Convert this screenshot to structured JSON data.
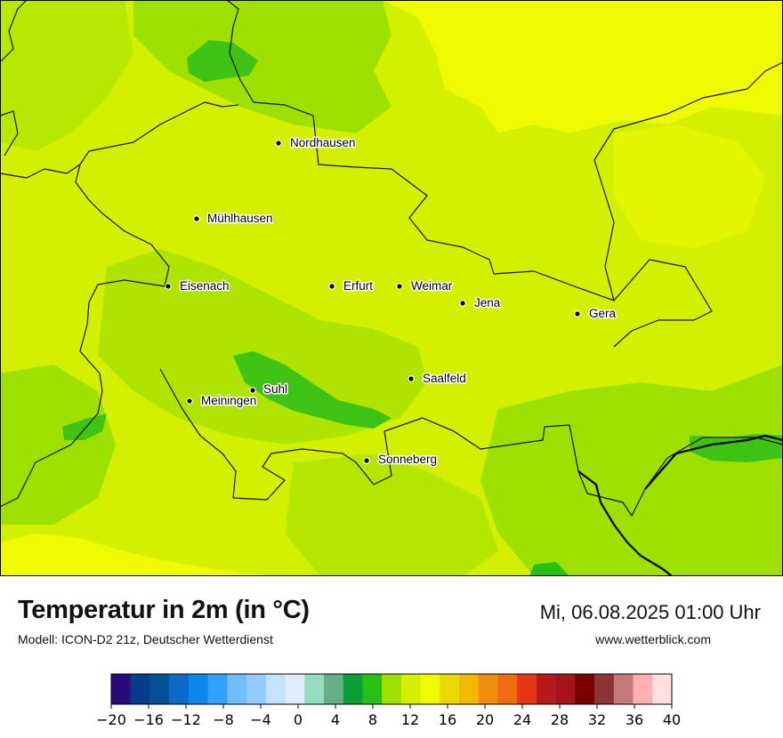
{
  "header": {
    "title": "Temperatur in 2m (in °C)",
    "subtitle": "Modell: ICON-D2 21z, Deutscher Wetterdienst",
    "datetime": "Mi, 06.08.2025 01:00 Uhr",
    "website": "www.wetterblick.com"
  },
  "cities": [
    {
      "name": "Nordhausen"
    },
    {
      "name": "Mühlhausen"
    },
    {
      "name": "Eisenach"
    },
    {
      "name": "Erfurt"
    },
    {
      "name": "Weimar"
    },
    {
      "name": "Jena"
    },
    {
      "name": "Gera"
    },
    {
      "name": "Saalfeld"
    },
    {
      "name": "Suhl"
    },
    {
      "name": "Meiningen"
    },
    {
      "name": "Sonneberg"
    }
  ],
  "legend": {
    "ticks": [
      "−20",
      "−16",
      "−12",
      "−8",
      "−4",
      "0",
      "4",
      "8",
      "12",
      "16",
      "20",
      "24",
      "28",
      "32",
      "36",
      "40"
    ],
    "colors": [
      "#2a0b7a",
      "#063b8a",
      "#054f94",
      "#0a6cc8",
      "#0d87ec",
      "#33a1fb",
      "#72bdfc",
      "#93cbfd",
      "#c4e1fe",
      "#deecfe",
      "#95ddc0",
      "#66af89",
      "#0e9e37",
      "#28c016",
      "#9ee000",
      "#d4f000",
      "#f0fb00",
      "#ecd700",
      "#f1b800",
      "#f18e0f",
      "#ef6c11",
      "#e63714",
      "#b51a1b",
      "#a5141c",
      "#7a0000",
      "#8d3434",
      "#c67878",
      "#fbb1b1",
      "#ffe0e0"
    ]
  }
}
